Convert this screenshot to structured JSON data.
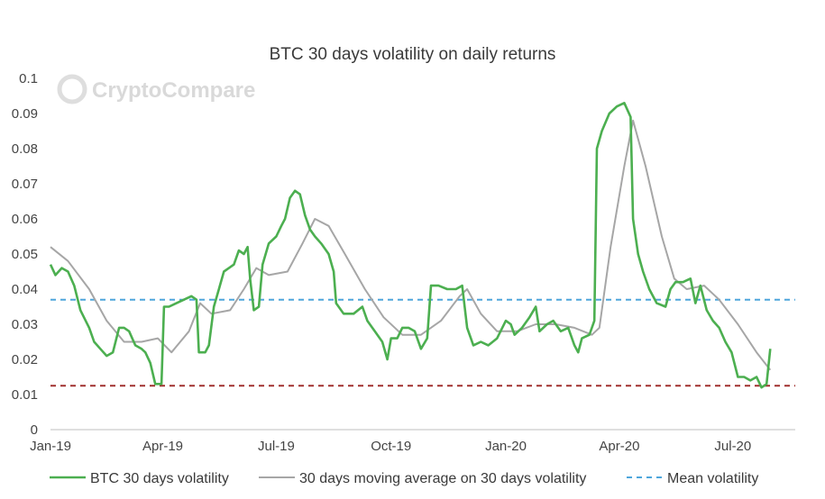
{
  "chart_data": {
    "type": "line",
    "title": "BTC 30 days volatility on daily returns",
    "watermark": "CryptoCompare",
    "x_range": [
      "2019-01-01",
      "2020-08-20"
    ],
    "x_ticks": [
      {
        "date": "2019-01-01",
        "label": "Jan-19"
      },
      {
        "date": "2019-04-01",
        "label": "Apr-19"
      },
      {
        "date": "2019-07-01",
        "label": "Jul-19"
      },
      {
        "date": "2019-10-01",
        "label": "Oct-19"
      },
      {
        "date": "2020-01-01",
        "label": "Jan-20"
      },
      {
        "date": "2020-04-01",
        "label": "Apr-20"
      },
      {
        "date": "2020-07-01",
        "label": "Jul-20"
      }
    ],
    "y_range": [
      0,
      0.1
    ],
    "y_ticks": [
      "0",
      "0.01",
      "0.02",
      "0.03",
      "0.04",
      "0.05",
      "0.06",
      "0.07",
      "0.08",
      "0.09",
      "0.1"
    ],
    "grid": false,
    "legend_position": "bottom",
    "series": [
      {
        "name": "BTC 30 days volatility",
        "color": "#4caf50",
        "style": "solid",
        "points": [
          [
            "2019-01-01",
            0.047
          ],
          [
            "2019-01-05",
            0.044
          ],
          [
            "2019-01-10",
            0.046
          ],
          [
            "2019-01-15",
            0.045
          ],
          [
            "2019-01-20",
            0.041
          ],
          [
            "2019-01-25",
            0.034
          ],
          [
            "2019-02-01",
            0.029
          ],
          [
            "2019-02-05",
            0.025
          ],
          [
            "2019-02-10",
            0.023
          ],
          [
            "2019-02-15",
            0.021
          ],
          [
            "2019-02-20",
            0.022
          ],
          [
            "2019-02-25",
            0.029
          ],
          [
            "2019-03-01",
            0.029
          ],
          [
            "2019-03-05",
            0.028
          ],
          [
            "2019-03-10",
            0.024
          ],
          [
            "2019-03-15",
            0.023
          ],
          [
            "2019-03-18",
            0.022
          ],
          [
            "2019-03-22",
            0.019
          ],
          [
            "2019-03-26",
            0.013
          ],
          [
            "2019-03-31",
            0.013
          ],
          [
            "2019-04-02",
            0.035
          ],
          [
            "2019-04-06",
            0.035
          ],
          [
            "2019-04-12",
            0.036
          ],
          [
            "2019-04-18",
            0.037
          ],
          [
            "2019-04-24",
            0.038
          ],
          [
            "2019-04-28",
            0.037
          ],
          [
            "2019-04-30",
            0.022
          ],
          [
            "2019-05-05",
            0.022
          ],
          [
            "2019-05-08",
            0.024
          ],
          [
            "2019-05-12",
            0.035
          ],
          [
            "2019-05-16",
            0.04
          ],
          [
            "2019-05-20",
            0.045
          ],
          [
            "2019-05-24",
            0.046
          ],
          [
            "2019-05-28",
            0.047
          ],
          [
            "2019-06-01",
            0.051
          ],
          [
            "2019-06-05",
            0.05
          ],
          [
            "2019-06-08",
            0.052
          ],
          [
            "2019-06-10",
            0.043
          ],
          [
            "2019-06-13",
            0.034
          ],
          [
            "2019-06-17",
            0.035
          ],
          [
            "2019-06-20",
            0.047
          ],
          [
            "2019-06-25",
            0.053
          ],
          [
            "2019-07-01",
            0.055
          ],
          [
            "2019-07-05",
            0.058
          ],
          [
            "2019-07-08",
            0.06
          ],
          [
            "2019-07-12",
            0.066
          ],
          [
            "2019-07-16",
            0.068
          ],
          [
            "2019-07-20",
            0.067
          ],
          [
            "2019-07-24",
            0.061
          ],
          [
            "2019-07-28",
            0.057
          ],
          [
            "2019-08-01",
            0.055
          ],
          [
            "2019-08-06",
            0.053
          ],
          [
            "2019-08-12",
            0.05
          ],
          [
            "2019-08-16",
            0.045
          ],
          [
            "2019-08-18",
            0.036
          ],
          [
            "2019-08-24",
            0.033
          ],
          [
            "2019-09-01",
            0.033
          ],
          [
            "2019-09-08",
            0.035
          ],
          [
            "2019-09-12",
            0.031
          ],
          [
            "2019-09-18",
            0.028
          ],
          [
            "2019-09-24",
            0.025
          ],
          [
            "2019-09-28",
            0.02
          ],
          [
            "2019-10-01",
            0.026
          ],
          [
            "2019-10-06",
            0.026
          ],
          [
            "2019-10-10",
            0.029
          ],
          [
            "2019-10-15",
            0.029
          ],
          [
            "2019-10-20",
            0.028
          ],
          [
            "2019-10-25",
            0.023
          ],
          [
            "2019-10-30",
            0.026
          ],
          [
            "2019-11-02",
            0.041
          ],
          [
            "2019-11-08",
            0.041
          ],
          [
            "2019-11-15",
            0.04
          ],
          [
            "2019-11-22",
            0.04
          ],
          [
            "2019-11-27",
            0.041
          ],
          [
            "2019-12-01",
            0.029
          ],
          [
            "2019-12-06",
            0.024
          ],
          [
            "2019-12-12",
            0.025
          ],
          [
            "2019-12-18",
            0.024
          ],
          [
            "2019-12-25",
            0.026
          ],
          [
            "2020-01-01",
            0.031
          ],
          [
            "2020-01-05",
            0.03
          ],
          [
            "2020-01-08",
            0.027
          ],
          [
            "2020-01-14",
            0.029
          ],
          [
            "2020-01-20",
            0.032
          ],
          [
            "2020-01-25",
            0.035
          ],
          [
            "2020-01-28",
            0.028
          ],
          [
            "2020-02-03",
            0.03
          ],
          [
            "2020-02-08",
            0.031
          ],
          [
            "2020-02-14",
            0.028
          ],
          [
            "2020-02-20",
            0.029
          ],
          [
            "2020-02-25",
            0.024
          ],
          [
            "2020-02-28",
            0.022
          ],
          [
            "2020-03-02",
            0.026
          ],
          [
            "2020-03-08",
            0.027
          ],
          [
            "2020-03-12",
            0.031
          ],
          [
            "2020-03-14",
            0.08
          ],
          [
            "2020-03-18",
            0.085
          ],
          [
            "2020-03-24",
            0.09
          ],
          [
            "2020-03-30",
            0.092
          ],
          [
            "2020-04-05",
            0.093
          ],
          [
            "2020-04-10",
            0.089
          ],
          [
            "2020-04-12",
            0.06
          ],
          [
            "2020-04-16",
            0.05
          ],
          [
            "2020-04-20",
            0.045
          ],
          [
            "2020-04-25",
            0.04
          ],
          [
            "2020-05-01",
            0.036
          ],
          [
            "2020-05-08",
            0.035
          ],
          [
            "2020-05-12",
            0.04
          ],
          [
            "2020-05-16",
            0.042
          ],
          [
            "2020-05-22",
            0.042
          ],
          [
            "2020-05-28",
            0.043
          ],
          [
            "2020-06-01",
            0.036
          ],
          [
            "2020-06-05",
            0.041
          ],
          [
            "2020-06-10",
            0.034
          ],
          [
            "2020-06-15",
            0.031
          ],
          [
            "2020-06-20",
            0.029
          ],
          [
            "2020-06-25",
            0.025
          ],
          [
            "2020-06-30",
            0.022
          ],
          [
            "2020-07-05",
            0.015
          ],
          [
            "2020-07-10",
            0.015
          ],
          [
            "2020-07-15",
            0.014
          ],
          [
            "2020-07-20",
            0.015
          ],
          [
            "2020-07-24",
            0.012
          ],
          [
            "2020-07-28",
            0.013
          ],
          [
            "2020-07-31",
            0.023
          ]
        ]
      },
      {
        "name": "30 days moving average on 30 days volatility",
        "color": "#a6a6a6",
        "style": "solid",
        "points": [
          [
            "2019-01-01",
            0.052
          ],
          [
            "2019-01-15",
            0.048
          ],
          [
            "2019-02-01",
            0.04
          ],
          [
            "2019-02-15",
            0.031
          ],
          [
            "2019-03-01",
            0.025
          ],
          [
            "2019-03-15",
            0.025
          ],
          [
            "2019-03-28",
            0.026
          ],
          [
            "2019-04-08",
            0.022
          ],
          [
            "2019-04-22",
            0.028
          ],
          [
            "2019-05-01",
            0.036
          ],
          [
            "2019-05-10",
            0.033
          ],
          [
            "2019-05-25",
            0.034
          ],
          [
            "2019-06-05",
            0.04
          ],
          [
            "2019-06-15",
            0.046
          ],
          [
            "2019-06-25",
            0.044
          ],
          [
            "2019-07-10",
            0.045
          ],
          [
            "2019-07-22",
            0.053
          ],
          [
            "2019-08-01",
            0.06
          ],
          [
            "2019-08-12",
            0.058
          ],
          [
            "2019-08-25",
            0.05
          ],
          [
            "2019-09-10",
            0.04
          ],
          [
            "2019-09-25",
            0.032
          ],
          [
            "2019-10-10",
            0.027
          ],
          [
            "2019-10-25",
            0.027
          ],
          [
            "2019-11-10",
            0.031
          ],
          [
            "2019-11-25",
            0.038
          ],
          [
            "2019-12-01",
            0.04
          ],
          [
            "2019-12-12",
            0.033
          ],
          [
            "2019-12-25",
            0.028
          ],
          [
            "2020-01-10",
            0.028
          ],
          [
            "2020-01-25",
            0.03
          ],
          [
            "2020-02-10",
            0.03
          ],
          [
            "2020-02-25",
            0.029
          ],
          [
            "2020-03-10",
            0.027
          ],
          [
            "2020-03-16",
            0.029
          ],
          [
            "2020-03-25",
            0.052
          ],
          [
            "2020-04-05",
            0.075
          ],
          [
            "2020-04-12",
            0.088
          ],
          [
            "2020-04-22",
            0.075
          ],
          [
            "2020-05-05",
            0.055
          ],
          [
            "2020-05-15",
            0.043
          ],
          [
            "2020-05-25",
            0.04
          ],
          [
            "2020-06-08",
            0.041
          ],
          [
            "2020-06-20",
            0.037
          ],
          [
            "2020-07-05",
            0.03
          ],
          [
            "2020-07-20",
            0.022
          ],
          [
            "2020-07-31",
            0.017
          ]
        ]
      },
      {
        "name": "Mean volatility",
        "color": "#4ea6dc",
        "style": "dashed",
        "points": [
          [
            "2019-01-01",
            0.037
          ],
          [
            "2020-08-20",
            0.037
          ]
        ]
      },
      {
        "name": "",
        "color": "#a0302e",
        "style": "dashed",
        "points": [
          [
            "2019-01-01",
            0.0125
          ],
          [
            "2020-08-20",
            0.0125
          ]
        ]
      }
    ]
  }
}
